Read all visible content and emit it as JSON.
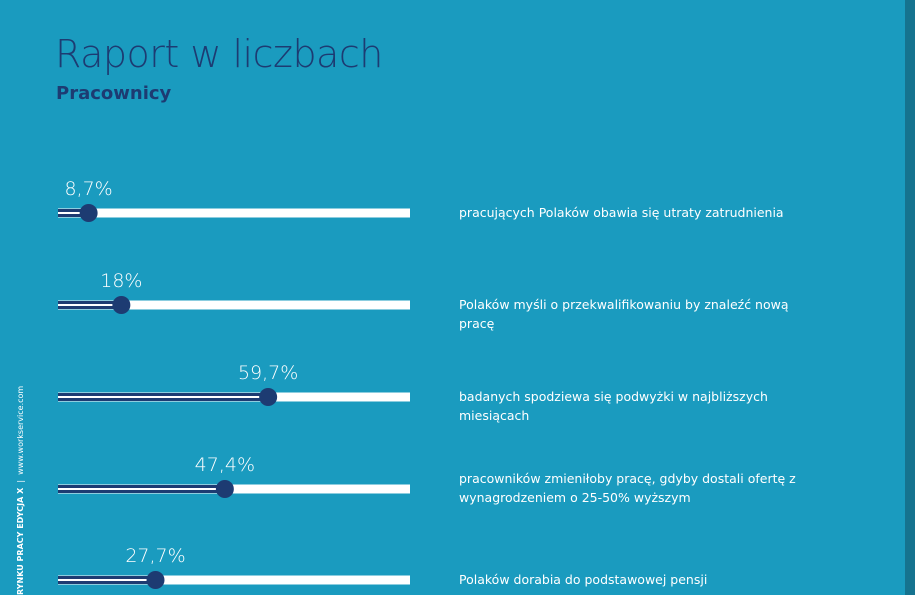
{
  "chart_data": {
    "type": "slider",
    "title": "Raport w liczbach",
    "subtitle": "Pracownicy",
    "categories": [
      "pracujących Polaków obawia się utraty zatrudnienia",
      "Polaków myśli o przekwalifikowaniu by znaleźć nową pracę",
      "badanych spodziewa się podwyżki w najbliższych miesiącach",
      "pracowników zmieniłoby pracę, gdyby dostali ofertę z wynagrodzeniem o 25-50% wyższym",
      "Polaków dorabia do podstawowej pensji"
    ],
    "values": [
      8.7,
      18,
      59.7,
      47.4,
      27.7
    ],
    "value_labels": [
      "8,7%",
      "18%",
      "59,7%",
      "47,4%",
      "27,7%"
    ],
    "xlim": [
      0,
      100
    ],
    "color": "#1d3b72"
  },
  "sidebar": [
    "RYNKU PRACY EDYCJA X",
    "www.workservice.com"
  ]
}
